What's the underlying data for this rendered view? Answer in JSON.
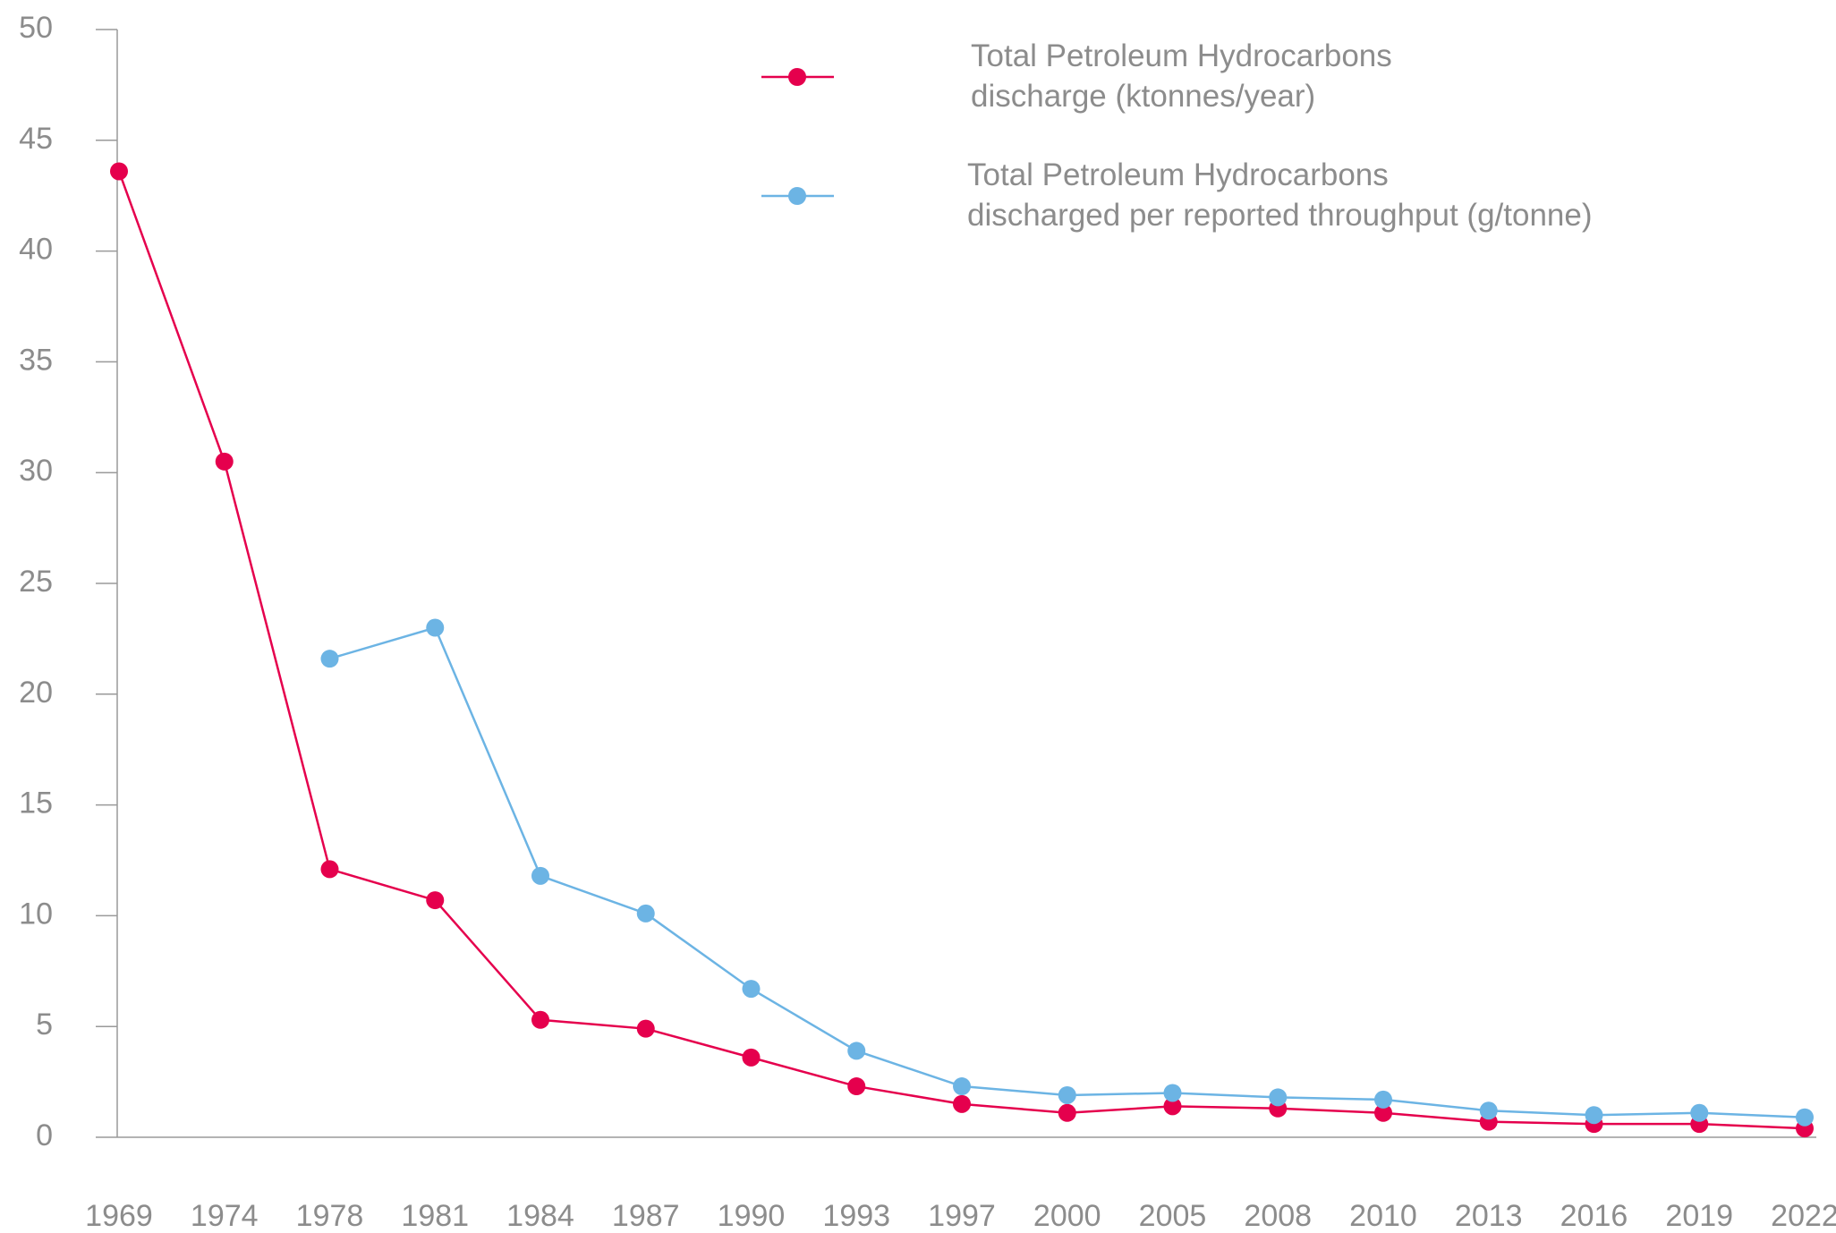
{
  "chart_data": {
    "type": "line",
    "categories": [
      "1969",
      "1974",
      "1978",
      "1981",
      "1984",
      "1987",
      "1990",
      "1993",
      "1997",
      "2000",
      "2005",
      "2008",
      "2010",
      "2013",
      "2016",
      "2019",
      "2022"
    ],
    "series": [
      {
        "name": "Total Petroleum Hydrocarbons\ndischarge (ktonnes/year)",
        "color": "#e5004d",
        "values": [
          43.6,
          30.5,
          12.1,
          10.7,
          5.3,
          4.9,
          3.6,
          2.3,
          1.5,
          1.1,
          1.4,
          1.3,
          1.1,
          0.7,
          0.6,
          0.6,
          0.4
        ]
      },
      {
        "name": "Total Petroleum Hydrocarbons\ndischarged per reported throughput (g/tonne)",
        "color": "#6cb4e4",
        "values": [
          null,
          null,
          21.6,
          23.0,
          11.8,
          10.1,
          6.7,
          3.9,
          2.3,
          1.9,
          2.0,
          1.8,
          1.7,
          1.2,
          1.0,
          1.1,
          0.9
        ]
      }
    ],
    "ylim": [
      0,
      50
    ],
    "yticks": [
      0,
      5,
      10,
      15,
      20,
      25,
      30,
      35,
      40,
      45,
      50
    ],
    "grid": false
  }
}
